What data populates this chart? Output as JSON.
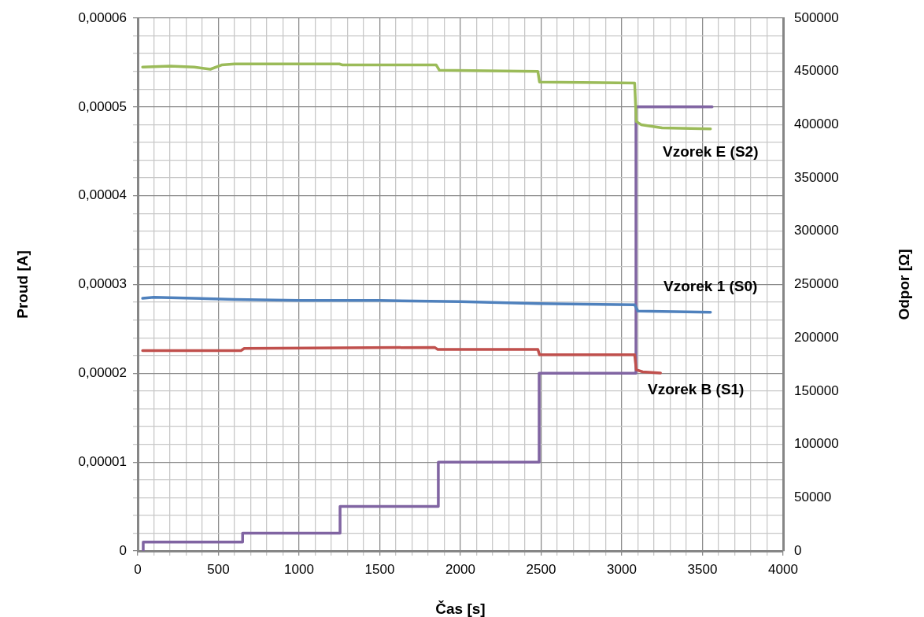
{
  "chart_data": {
    "type": "line",
    "xlabel": "Čas [s]",
    "ylabel": "Proud [A]",
    "y2label": "Odpor [Ω]",
    "xlim": [
      0,
      4000
    ],
    "xticks": [
      0,
      {
        "value": 100,
        "label": null
      },
      {
        "value": 200,
        "label": null
      },
      {
        "value": 300,
        "label": null
      },
      {
        "value": 400,
        "label": null
      },
      500,
      {
        "value": 600,
        "label": null
      },
      {
        "value": 700,
        "label": null
      },
      {
        "value": 800,
        "label": null
      },
      {
        "value": 900,
        "label": null
      },
      1000,
      {
        "value": 1100,
        "label": null
      },
      {
        "value": 1200,
        "label": null
      },
      {
        "value": 1300,
        "label": null
      },
      {
        "value": 1400,
        "label": null
      },
      1500,
      {
        "value": 1600,
        "label": null
      },
      {
        "value": 1700,
        "label": null
      },
      {
        "value": 1800,
        "label": null
      },
      {
        "value": 1900,
        "label": null
      },
      2000,
      {
        "value": 2100,
        "label": null
      },
      {
        "value": 2200,
        "label": null
      },
      {
        "value": 2300,
        "label": null
      },
      {
        "value": 2400,
        "label": null
      },
      2500,
      {
        "value": 2600,
        "label": null
      },
      {
        "value": 2700,
        "label": null
      },
      {
        "value": 2800,
        "label": null
      },
      {
        "value": 2900,
        "label": null
      },
      3000,
      {
        "value": 3100,
        "label": null
      },
      {
        "value": 3200,
        "label": null
      },
      {
        "value": 3300,
        "label": null
      },
      {
        "value": 3400,
        "label": null
      },
      3500,
      {
        "value": 3600,
        "label": null
      },
      {
        "value": 3700,
        "label": null
      },
      {
        "value": 3800,
        "label": null
      },
      {
        "value": 3900,
        "label": null
      },
      4000
    ],
    "ylim": [
      0,
      6e-05
    ],
    "yticks": [
      0,
      {
        "value": 2e-06,
        "label": null
      },
      {
        "value": 4e-06,
        "label": null
      },
      {
        "value": 6e-06,
        "label": null
      },
      {
        "value": 8e-06,
        "label": null
      },
      {
        "value": 1e-05,
        "label": "0,00001"
      },
      {
        "value": 1.2e-05,
        "label": null
      },
      {
        "value": 1.4e-05,
        "label": null
      },
      {
        "value": 1.6e-05,
        "label": null
      },
      {
        "value": 1.8e-05,
        "label": null
      },
      {
        "value": 2e-05,
        "label": "0,00002"
      },
      {
        "value": 2.2e-05,
        "label": null
      },
      {
        "value": 2.4e-05,
        "label": null
      },
      {
        "value": 2.6e-05,
        "label": null
      },
      {
        "value": 2.8e-05,
        "label": null
      },
      {
        "value": 3e-05,
        "label": "0,00003"
      },
      {
        "value": 3.2e-05,
        "label": null
      },
      {
        "value": 3.4e-05,
        "label": null
      },
      {
        "value": 3.6e-05,
        "label": null
      },
      {
        "value": 3.8e-05,
        "label": null
      },
      {
        "value": 4e-05,
        "label": "0,00004"
      },
      {
        "value": 4.2e-05,
        "label": null
      },
      {
        "value": 4.4e-05,
        "label": null
      },
      {
        "value": 4.6e-05,
        "label": null
      },
      {
        "value": 4.8e-05,
        "label": null
      },
      {
        "value": 5e-05,
        "label": "0,00005"
      },
      {
        "value": 5.2e-05,
        "label": null
      },
      {
        "value": 5.4e-05,
        "label": null
      },
      {
        "value": 5.6e-05,
        "label": null
      },
      {
        "value": 5.8e-05,
        "label": null
      },
      {
        "value": 6e-05,
        "label": "0,00006"
      }
    ],
    "y2lim": [
      0,
      500000
    ],
    "y2ticks": [
      0,
      50000,
      100000,
      150000,
      200000,
      250000,
      300000,
      350000,
      400000,
      450000,
      500000
    ],
    "grid": true,
    "legend": false,
    "marker": "none",
    "line_style": "solid",
    "series": [
      {
        "name": "Vzorek E (S2)",
        "color": "#9bbb59",
        "axis": "y2",
        "x": [
          30,
          200,
          350,
          450,
          520,
          600,
          900,
          1250,
          1270,
          1850,
          1870,
          2480,
          2490,
          3080,
          3090,
          3120,
          3250,
          3550
        ],
        "values": [
          454000,
          455000,
          454000,
          452000,
          456000,
          457000,
          457000,
          457000,
          456000,
          456000,
          451000,
          450000,
          440000,
          439000,
          403000,
          400000,
          397000,
          396000
        ]
      },
      {
        "name": "Vzorek 1 (S0)",
        "color": "#4f81bd",
        "axis": "y2",
        "x": [
          30,
          100,
          600,
          1000,
          1500,
          2000,
          2480,
          3080,
          3100,
          3550
        ],
        "values": [
          237000,
          238000,
          236000,
          235000,
          235000,
          234000,
          232000,
          231000,
          225000,
          224000
        ]
      },
      {
        "name": "Vzorek B (S1)",
        "color": "#c0504d",
        "axis": "y2",
        "x": [
          30,
          640,
          660,
          1840,
          1860,
          2480,
          2490,
          3080,
          3090,
          3130,
          3240
        ],
        "values": [
          188000,
          188000,
          190000,
          191000,
          189000,
          189000,
          184000,
          184000,
          170000,
          168000,
          167000
        ]
      },
      {
        "type": "step",
        "color": "#8064a2",
        "axis": "y",
        "x": [
          34,
          34,
          650,
          1254,
          1863,
          2488,
          3088,
          3560
        ],
        "values": [
          0,
          1e-06,
          2e-06,
          5e-06,
          1e-05,
          2e-05,
          5e-05,
          5e-05
        ]
      }
    ]
  }
}
